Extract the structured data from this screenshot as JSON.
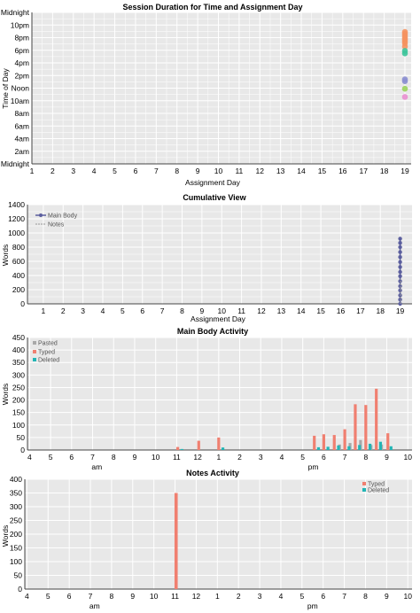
{
  "colors": {
    "bg": "#e8e8e8",
    "grid": "#ffffff",
    "typed": "#f07f70",
    "pasted": "#a8a8a8",
    "deleted": "#21b5b5",
    "main_body": "#5b5e9e",
    "notes": "#999999"
  },
  "chart_data": [
    {
      "type": "scatter",
      "title": "Session Duration for Time and Assignment Day",
      "xlabel": "Assignment Day",
      "ylabel": "Time of Day",
      "x_ticks": [
        "1",
        "2",
        "3",
        "4",
        "5",
        "6",
        "7",
        "8",
        "9",
        "10",
        "11",
        "12",
        "13",
        "14",
        "15",
        "16",
        "17",
        "18",
        "19"
      ],
      "y_ticks": [
        "Midnight",
        "2am",
        "4am",
        "6am",
        "8am",
        "10am",
        "Noon",
        "2pm",
        "4pm",
        "6pm",
        "8pm",
        "10pm",
        "Midnight"
      ],
      "xlim": [
        1,
        19.3
      ],
      "ylim": [
        0,
        24
      ],
      "points": [
        {
          "x": 19,
          "y": 20.9,
          "color": "#f5925f"
        },
        {
          "x": 19,
          "y": 20.6,
          "color": "#f5925f"
        },
        {
          "x": 19,
          "y": 20.3,
          "color": "#f5925f"
        },
        {
          "x": 19,
          "y": 20.0,
          "color": "#f5925f"
        },
        {
          "x": 19,
          "y": 19.7,
          "color": "#f5925f"
        },
        {
          "x": 19,
          "y": 19.4,
          "color": "#f5925f"
        },
        {
          "x": 19,
          "y": 19.1,
          "color": "#f5925f"
        },
        {
          "x": 19,
          "y": 18.6,
          "color": "#f5925f"
        },
        {
          "x": 19,
          "y": 17.9,
          "color": "#3dc49a"
        },
        {
          "x": 19,
          "y": 17.5,
          "color": "#3dc49a"
        },
        {
          "x": 19,
          "y": 13.4,
          "color": "#8b8fd0"
        },
        {
          "x": 19,
          "y": 13.1,
          "color": "#8b8fd0"
        },
        {
          "x": 19,
          "y": 11.9,
          "color": "#9ad35c"
        },
        {
          "x": 19,
          "y": 10.6,
          "color": "#e98fd0"
        }
      ]
    },
    {
      "type": "line",
      "title": "Cumulative View",
      "xlabel": "Assignment Day",
      "ylabel": "Words",
      "x_ticks": [
        "1",
        "2",
        "3",
        "4",
        "5",
        "6",
        "7",
        "8",
        "9",
        "10",
        "11",
        "12",
        "13",
        "14",
        "15",
        "16",
        "17",
        "18",
        "19"
      ],
      "y_ticks": [
        "0",
        "200",
        "400",
        "600",
        "800",
        "1000",
        "1200",
        "1400"
      ],
      "xlim": [
        0.2,
        19.6
      ],
      "ylim": [
        0,
        1400
      ],
      "legend": "top-left",
      "series": [
        {
          "name": "Main Body",
          "x": [
            19,
            19,
            19,
            19,
            19,
            19,
            19,
            19,
            19,
            19,
            19,
            19,
            19,
            19,
            19
          ],
          "y": [
            0,
            60,
            120,
            190,
            250,
            320,
            390,
            450,
            520,
            590,
            660,
            730,
            800,
            860,
            920
          ]
        },
        {
          "name": "Notes",
          "x": [
            19,
            19
          ],
          "y": [
            0,
            350
          ]
        }
      ]
    },
    {
      "type": "bar",
      "title": "Main Body Activity",
      "xlabel": "",
      "ylabel": "Words",
      "x_ticks": [
        "4",
        "5",
        "6",
        "7",
        "8",
        "9",
        "10",
        "11",
        "12",
        "1",
        "2",
        "3",
        "4",
        "5",
        "6",
        "7",
        "8",
        "9",
        "10"
      ],
      "x_ticks_start": 4,
      "period_labels": [
        "am",
        "pm"
      ],
      "y_ticks": [
        "0",
        "50",
        "100",
        "150",
        "200",
        "250",
        "300",
        "350",
        "400",
        "450"
      ],
      "xlim": [
        3.9,
        22.2
      ],
      "ylim": [
        0,
        450
      ],
      "legend": "top-left",
      "series": [
        {
          "name": "Pasted",
          "color": "#a8a8a8",
          "x": [
            18.75,
            19.25,
            19.75,
            20.25,
            20.75
          ],
          "values": [
            22,
            28,
            40,
            20,
            22
          ]
        },
        {
          "name": "Typed",
          "color": "#f07f70",
          "x": [
            11.05,
            12.05,
            13.0,
            17.55,
            18.0,
            18.5,
            19.0,
            19.5,
            20.0,
            20.5,
            21.05
          ],
          "values": [
            12,
            37,
            50,
            57,
            63,
            60,
            83,
            183,
            180,
            245,
            67
          ]
        },
        {
          "name": "Deleted",
          "color": "#21b5b5",
          "x": [
            11.25,
            13.2,
            17.75,
            18.2,
            18.7,
            19.2,
            19.7,
            20.2,
            20.7,
            21.2
          ],
          "values": [
            4,
            10,
            11,
            13,
            18,
            15,
            20,
            25,
            33,
            15
          ]
        }
      ]
    },
    {
      "type": "bar",
      "title": "Notes Activity",
      "xlabel": "",
      "ylabel": "Words",
      "x_ticks": [
        "4",
        "5",
        "6",
        "7",
        "8",
        "9",
        "10",
        "11",
        "12",
        "1",
        "2",
        "3",
        "4",
        "5",
        "6",
        "7",
        "8",
        "9",
        "10"
      ],
      "x_ticks_start": 4,
      "period_labels": [
        "am",
        "pm"
      ],
      "y_ticks": [
        "0",
        "50",
        "100",
        "150",
        "200",
        "250",
        "300",
        "350",
        "400"
      ],
      "xlim": [
        3.9,
        22.2
      ],
      "ylim": [
        0,
        400
      ],
      "legend": "top-right",
      "series": [
        {
          "name": "Typed",
          "color": "#f07f70",
          "x": [
            11.05
          ],
          "values": [
            350
          ]
        },
        {
          "name": "Deleted",
          "color": "#21b5b5",
          "x": [],
          "values": []
        }
      ]
    }
  ]
}
